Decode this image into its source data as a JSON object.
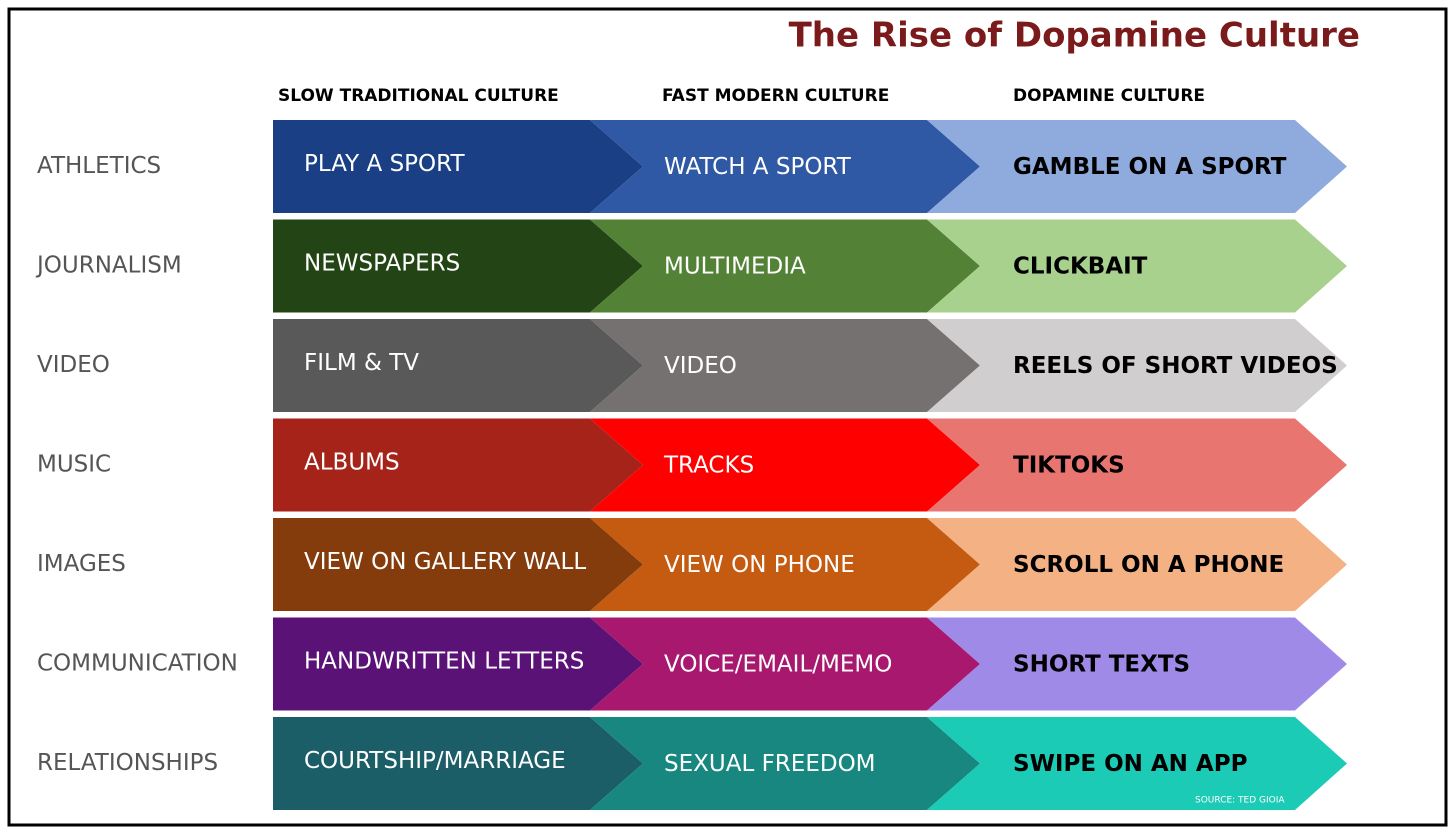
{
  "title": "The Rise of Dopamine Culture",
  "columns": [
    "SLOW TRADITIONAL CULTURE",
    "FAST MODERN CULTURE",
    "DOPAMINE CULTURE"
  ],
  "rows": [
    {
      "label": "ATHLETICS",
      "cells": [
        {
          "text": "PLAY A SPORT",
          "color": "#1a3f85"
        },
        {
          "text": "WATCH A SPORT",
          "color": "#2f58a5"
        },
        {
          "text": "GAMBLE ON A SPORT",
          "color": "#8faadc"
        }
      ]
    },
    {
      "label": "JOURNALISM",
      "cells": [
        {
          "text": "NEWSPAPERS",
          "color": "#234516"
        },
        {
          "text": "MULTIMEDIA",
          "color": "#538135"
        },
        {
          "text": "CLICKBAIT",
          "color": "#a9d18e"
        }
      ]
    },
    {
      "label": "VIDEO",
      "cells": [
        {
          "text": "FILM &  TV",
          "color": "#595959"
        },
        {
          "text": "VIDEO",
          "color": "#767171"
        },
        {
          "text": "REELS OF SHORT VIDEOS",
          "color": "#d0cece"
        }
      ]
    },
    {
      "label": "MUSIC",
      "cells": [
        {
          "text": "ALBUMS",
          "color": "#a52318"
        },
        {
          "text": "TRACKS",
          "color": "#ff0000"
        },
        {
          "text": "TIKTOKS",
          "color": "#e8756f"
        }
      ]
    },
    {
      "label": "IMAGES",
      "cells": [
        {
          "text": "VIEW ON GALLERY WALL",
          "color": "#843c0c"
        },
        {
          "text": "VIEW ON PHONE",
          "color": "#c55a11"
        },
        {
          "text": "SCROLL ON A PHONE",
          "color": "#f4b183"
        }
      ]
    },
    {
      "label": "COMMUNICATION",
      "cells": [
        {
          "text": "HANDWRITTEN LETTERS",
          "color": "#5a1277"
        },
        {
          "text": "VOICE/EMAIL/MEMO",
          "color": "#a8186e"
        },
        {
          "text": "SHORT TEXTS",
          "color": "#a08ae8"
        }
      ]
    },
    {
      "label": "RELATIONSHIPS",
      "cells": [
        {
          "text": "COURTSHIP/MARRIAGE",
          "color": "#1b5e67"
        },
        {
          "text": "SEXUAL FREEDOM",
          "color": "#17877f"
        },
        {
          "text": "SWIPE ON AN APP",
          "color": "#1ccbb6"
        }
      ]
    }
  ],
  "source": "SOURCE: TED GIOIA"
}
